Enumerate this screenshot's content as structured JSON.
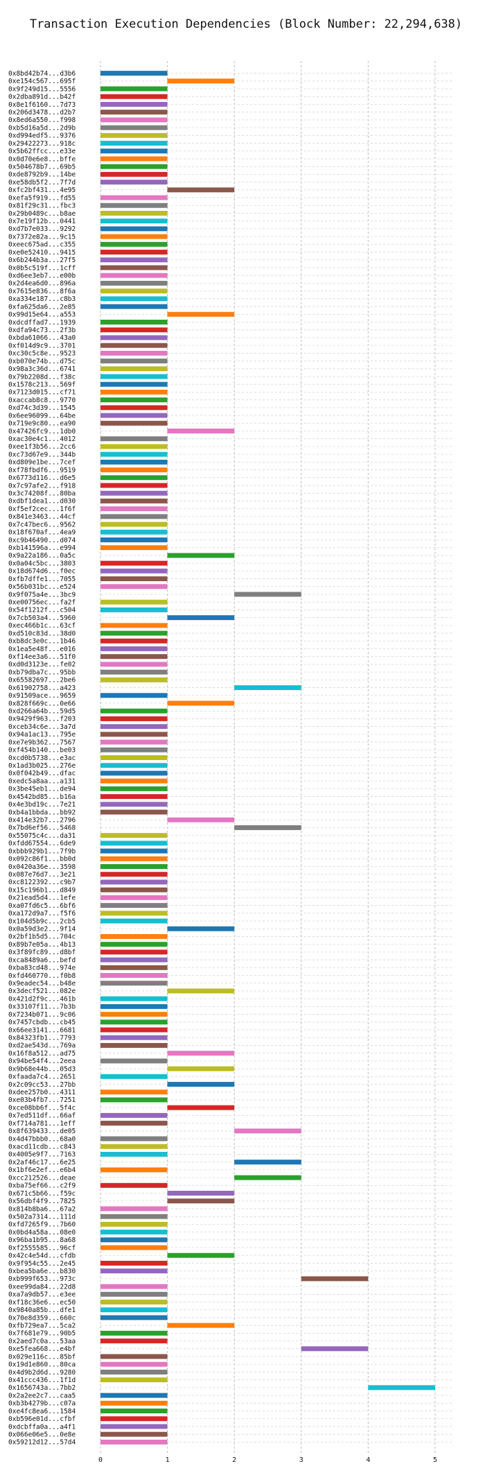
{
  "chart_data": {
    "type": "bar",
    "orientation": "horizontal",
    "title": "Transaction Execution Dependencies (Block Number: 22,294,638)",
    "xlabel": "",
    "ylabel": "",
    "xlim": [
      0,
      5
    ],
    "xticks": [
      0,
      1,
      2,
      3,
      4,
      5
    ],
    "grid": true,
    "colors": [
      "#1f77b4",
      "#ff7f0e",
      "#2ca02c",
      "#d62728",
      "#9467bd",
      "#8c564b",
      "#e377c2",
      "#7f7f7f",
      "#bcbd22",
      "#17becf"
    ],
    "transactions": [
      [
        "0x8bd42b74...d3b6",
        0,
        1
      ],
      [
        "0xe154c567...695f",
        1,
        2
      ],
      [
        "0x9f249d15...5556",
        0,
        1
      ],
      [
        "0x2dba891d...b42f",
        0,
        1
      ],
      [
        "0x8e1f6160...7d73",
        0,
        1
      ],
      [
        "0x206d3478...d2b7",
        0,
        1
      ],
      [
        "0x8ed6a550...f998",
        0,
        1
      ],
      [
        "0xb5d16a5d...2d9b",
        0,
        1
      ],
      [
        "0xd994edf5...9376",
        0,
        1
      ],
      [
        "0x29422273...918c",
        0,
        1
      ],
      [
        "0x5b62ffcc...e33e",
        0,
        1
      ],
      [
        "0x0d70e6e8...bffe",
        0,
        1
      ],
      [
        "0x504678b7...69b5",
        0,
        1
      ],
      [
        "0xde8792b9...14be",
        0,
        1
      ],
      [
        "0xe58db5f2...7f7d",
        0,
        1
      ],
      [
        "0xfc2bf431...4e95",
        1,
        2
      ],
      [
        "0xefa5f919...fd55",
        0,
        1
      ],
      [
        "0x81f29c31...fbc3",
        0,
        1
      ],
      [
        "0x29b0489c...b8ae",
        0,
        1
      ],
      [
        "0x7e19f12b...0441",
        0,
        1
      ],
      [
        "0xd7b7e033...9292",
        0,
        1
      ],
      [
        "0x7372e82a...9c15",
        0,
        1
      ],
      [
        "0xeec675ad...c355",
        0,
        1
      ],
      [
        "0xe0e52410...9415",
        0,
        1
      ],
      [
        "0x6b244b3a...27f5",
        0,
        1
      ],
      [
        "0x0b5c519f...1cff",
        0,
        1
      ],
      [
        "0xd6ee3eb7...e00b",
        0,
        1
      ],
      [
        "0x2d4ea6d0...896a",
        0,
        1
      ],
      [
        "0x7615e836...8f6a",
        0,
        1
      ],
      [
        "0xa334e187...c8b3",
        0,
        1
      ],
      [
        "0xfa625da6...2e85",
        0,
        1
      ],
      [
        "0x99d15e64...a553",
        1,
        2
      ],
      [
        "0xdcdffad7...1939",
        0,
        1
      ],
      [
        "0xdfa94c73...2f3b",
        0,
        1
      ],
      [
        "0xbda61066...43a0",
        0,
        1
      ],
      [
        "0xf014d9c9...3701",
        0,
        1
      ],
      [
        "0xc30c5c8e...9523",
        0,
        1
      ],
      [
        "0xb070e74b...d75c",
        0,
        1
      ],
      [
        "0x98a3c36d...6741",
        0,
        1
      ],
      [
        "0x79b2208d...f38c",
        0,
        1
      ],
      [
        "0x1578c213...569f",
        0,
        1
      ],
      [
        "0x7123d015...cf71",
        0,
        1
      ],
      [
        "0xaccab8c8...9770",
        0,
        1
      ],
      [
        "0xd74c3d39...1545",
        0,
        1
      ],
      [
        "0x6ee96099...64be",
        0,
        1
      ],
      [
        "0x719e9c80...ea90",
        0,
        1
      ],
      [
        "0x47426fc9...1db0",
        1,
        2
      ],
      [
        "0xac30e4c1...4012",
        0,
        1
      ],
      [
        "0xee1f3b56...2cc6",
        0,
        1
      ],
      [
        "0xc73d67e9...344b",
        0,
        1
      ],
      [
        "0xd809e1be...7cef",
        0,
        1
      ],
      [
        "0xf78fbdf6...9519",
        0,
        1
      ],
      [
        "0x6773d116...d6e5",
        0,
        1
      ],
      [
        "0x7c97afe2...f918",
        0,
        1
      ],
      [
        "0x3c74208f...80ba",
        0,
        1
      ],
      [
        "0xdbf1dea1...d030",
        0,
        1
      ],
      [
        "0xf5ef2cec...1f6f",
        0,
        1
      ],
      [
        "0x841e3463...44cf",
        0,
        1
      ],
      [
        "0x7c47bec6...9562",
        0,
        1
      ],
      [
        "0x18f670af...4ea9",
        0,
        1
      ],
      [
        "0xc9b46490...d074",
        0,
        1
      ],
      [
        "0xb141596a...e994",
        0,
        1
      ],
      [
        "0x9a22a186...0a5c",
        1,
        2
      ],
      [
        "0x0a04c5bc...3803",
        0,
        1
      ],
      [
        "0x18d674d6...f0ec",
        0,
        1
      ],
      [
        "0xfb7dffe1...7055",
        0,
        1
      ],
      [
        "0x56b031bc...e524",
        0,
        1
      ],
      [
        "0x9f075a4e...3bc9",
        2,
        3
      ],
      [
        "0xe00756ec...fa2f",
        0,
        1
      ],
      [
        "0x54f1212f...c504",
        0,
        1
      ],
      [
        "0x7cb503a4...5960",
        1,
        2
      ],
      [
        "0xec466b1c...63cf",
        0,
        1
      ],
      [
        "0xd510c83d...38d0",
        0,
        1
      ],
      [
        "0xb8dc3e0c...1b46",
        0,
        1
      ],
      [
        "0x1ea5e48f...e016",
        0,
        1
      ],
      [
        "0xf14ee3a6...51f0",
        0,
        1
      ],
      [
        "0xd0d3123e...fe02",
        0,
        1
      ],
      [
        "0xb79dba7c...95bb",
        0,
        1
      ],
      [
        "0x65582697...2be6",
        0,
        1
      ],
      [
        "0x61902758...a423",
        2,
        3
      ],
      [
        "0x91509ace...9659",
        0,
        1
      ],
      [
        "0x828f669c...0e66",
        1,
        2
      ],
      [
        "0xd266a64b...59d5",
        0,
        1
      ],
      [
        "0x9429f963...f203",
        0,
        1
      ],
      [
        "0xceb34c6e...3a7d",
        0,
        1
      ],
      [
        "0x94a1ac13...795e",
        0,
        1
      ],
      [
        "0xe7e9b362...7567",
        0,
        1
      ],
      [
        "0xf454b140...be03",
        0,
        1
      ],
      [
        "0xcd0b5738...e3ac",
        0,
        1
      ],
      [
        "0x1ad3b025...276e",
        0,
        1
      ],
      [
        "0x0f042b49...dfac",
        0,
        1
      ],
      [
        "0xedc5a8aa...a131",
        0,
        1
      ],
      [
        "0x3be45eb1...de94",
        0,
        1
      ],
      [
        "0x4542bd85...b16a",
        0,
        1
      ],
      [
        "0x4e3bd19c...7e21",
        0,
        1
      ],
      [
        "0xb4a1bbda...bb92",
        0,
        1
      ],
      [
        "0x414e32b7...2796",
        1,
        2
      ],
      [
        "0x7bd6ef56...5468",
        2,
        3
      ],
      [
        "0x55075c4c...da31",
        0,
        1
      ],
      [
        "0xfdd67554...6de9",
        0,
        1
      ],
      [
        "0xbbb929b1...7f9b",
        0,
        1
      ],
      [
        "0x092c86f1...bb0d",
        0,
        1
      ],
      [
        "0x0420a36e...3598",
        0,
        1
      ],
      [
        "0x087e76d7...3e21",
        0,
        1
      ],
      [
        "0xc8122392...c9b7",
        0,
        1
      ],
      [
        "0x15c196b1...d849",
        0,
        1
      ],
      [
        "0x21ead5d4...1efe",
        0,
        1
      ],
      [
        "0xa07fd6c5...6bf6",
        0,
        1
      ],
      [
        "0xa172d9a7...f5f6",
        0,
        1
      ],
      [
        "0x104d5b9c...2cb5",
        0,
        1
      ],
      [
        "0x0a59d3e2...9f14",
        1,
        2
      ],
      [
        "0x2bf1b5d5...704c",
        0,
        1
      ],
      [
        "0x89b7e05a...4b13",
        0,
        1
      ],
      [
        "0x3f89fc89...d8bf",
        0,
        1
      ],
      [
        "0xca8489a6...befd",
        0,
        1
      ],
      [
        "0xba83cd48...974e",
        0,
        1
      ],
      [
        "0xfd460770...f0b8",
        0,
        1
      ],
      [
        "0x9eadec54...b48e",
        0,
        1
      ],
      [
        "0x3decf521...082e",
        1,
        2
      ],
      [
        "0x421d2f9c...461b",
        0,
        1
      ],
      [
        "0x33107f11...7b3b",
        0,
        1
      ],
      [
        "0x7234b071...9c06",
        0,
        1
      ],
      [
        "0x7457cbdb...cb45",
        0,
        1
      ],
      [
        "0x66ee3141...6681",
        0,
        1
      ],
      [
        "0x84323fb1...7793",
        0,
        1
      ],
      [
        "0xd2ae543d...769a",
        0,
        1
      ],
      [
        "0x16f8a512...ad75",
        1,
        2
      ],
      [
        "0x94be54f4...2eea",
        0,
        1
      ],
      [
        "0x9b68e44b...05d3",
        1,
        2
      ],
      [
        "0xfaada7c4...2651",
        0,
        1
      ],
      [
        "0x2c09cc53...27bb",
        1,
        2
      ],
      [
        "0xdee257b0...4311",
        0,
        1
      ],
      [
        "0xe03b4fb7...7251",
        0,
        1
      ],
      [
        "0xce08bb6f...5f4c",
        1,
        2
      ],
      [
        "0x7ed511df...66af",
        0,
        1
      ],
      [
        "0xf714a781...1eff",
        0,
        1
      ],
      [
        "0x8f639433...de05",
        2,
        3
      ],
      [
        "0x4d47bbb0...68a0",
        0,
        1
      ],
      [
        "0xacd11cdb...c843",
        0,
        1
      ],
      [
        "0x4005e9f7...7163",
        0,
        1
      ],
      [
        "0x2af46c17...6e25",
        2,
        3
      ],
      [
        "0x1bf6e2ef...e6b4",
        0,
        1
      ],
      [
        "0xcc212526...deae",
        2,
        3
      ],
      [
        "0xba75ef66...c2f9",
        0,
        1
      ],
      [
        "0x671c5b66...f59c",
        1,
        2
      ],
      [
        "0x56dbf4f9...7825",
        1,
        2
      ],
      [
        "0x814b8ba6...67a2",
        0,
        1
      ],
      [
        "0x502a7314...111d",
        0,
        1
      ],
      [
        "0xfd7265f9...7b60",
        0,
        1
      ],
      [
        "0x0bd4a58a...08e0",
        0,
        1
      ],
      [
        "0x96ba1b95...8a68",
        0,
        1
      ],
      [
        "0xf2555585...96cf",
        0,
        1
      ],
      [
        "0x42c4e54d...cfdb",
        1,
        2
      ],
      [
        "0x9f954c55...2e45",
        0,
        1
      ],
      [
        "0xbea5ba6e...b830",
        0,
        1
      ],
      [
        "0xb999f653...973c",
        3,
        4
      ],
      [
        "0xee99da84...22d8",
        0,
        1
      ],
      [
        "0xa7a9db57...e3ee",
        0,
        1
      ],
      [
        "0xf18c36e6...ec50",
        0,
        1
      ],
      [
        "0x9840a85b...dfe1",
        0,
        1
      ],
      [
        "0x70e8d359...660c",
        0,
        1
      ],
      [
        "0xfb729ea7...5ca2",
        1,
        2
      ],
      [
        "0x7f681e79...90b5",
        0,
        1
      ],
      [
        "0x2aed7c0a...53aa",
        0,
        1
      ],
      [
        "0xe5fea668...e4bf",
        3,
        4
      ],
      [
        "0x029e116c...85bf",
        0,
        1
      ],
      [
        "0x19d1e860...80ca",
        0,
        1
      ],
      [
        "0x4d9b2d6d...9280",
        0,
        1
      ],
      [
        "0x41ccc436...1f1d",
        0,
        1
      ],
      [
        "0x1656743a...7bb2",
        4,
        5
      ],
      [
        "0x2a2ee2c7...caa5",
        0,
        1
      ],
      [
        "0xb3b4279b...c07a",
        0,
        1
      ],
      [
        "0xe4fc8ea6...1584",
        0,
        1
      ],
      [
        "0xb596e01d...cfbf",
        0,
        1
      ],
      [
        "0xdcbffa0a...a4f1",
        0,
        1
      ],
      [
        "0x066e06e5...0e8e",
        0,
        1
      ],
      [
        "0x59212d12...57d4",
        0,
        1
      ]
    ]
  }
}
